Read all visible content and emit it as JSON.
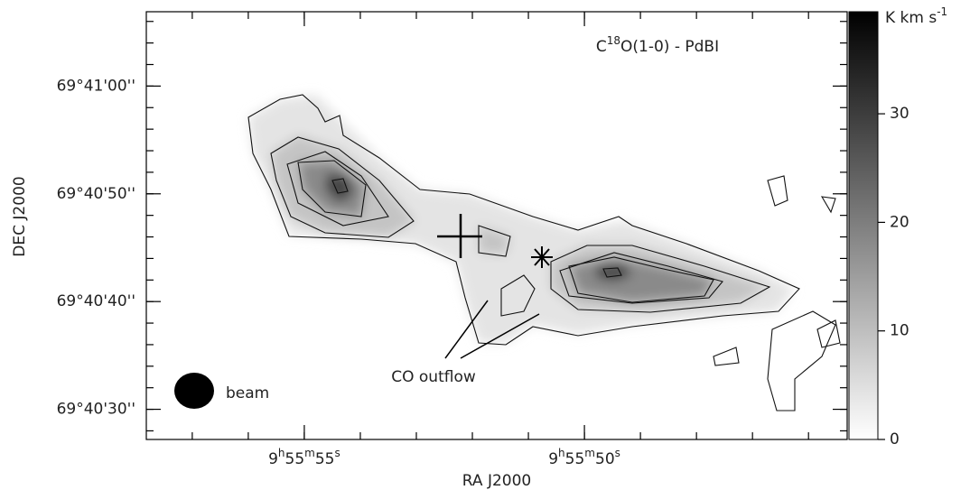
{
  "chart_data": {
    "type": "map",
    "title_parts": [
      {
        "text": "C"
      },
      {
        "text": "18",
        "sup": true
      },
      {
        "text": "O(1-0) - PdBI"
      }
    ],
    "xlabel": "RA J2000",
    "ylabel": "DEC J2000",
    "xlim": [
      57.82,
      45.31
    ],
    "xticks": [
      {
        "value": 55,
        "label_parts": [
          {
            "text": "9"
          },
          {
            "text": "h",
            "sup": true
          },
          {
            "text": "55"
          },
          {
            "text": "m",
            "sup": true
          },
          {
            "text": "55"
          },
          {
            "text": "s",
            "sup": true
          }
        ]
      },
      {
        "value": 50,
        "label_parts": [
          {
            "text": "9"
          },
          {
            "text": "h",
            "sup": true
          },
          {
            "text": "55"
          },
          {
            "text": "m",
            "sup": true
          },
          {
            "text": "50"
          },
          {
            "text": "s",
            "sup": true
          }
        ]
      }
    ],
    "ylim": [
      27.2,
      66.9
    ],
    "yticks": [
      {
        "value": 30,
        "label": "69°40'30''"
      },
      {
        "value": 40,
        "label": "69°40'40''"
      },
      {
        "value": 50,
        "label": "69°40'50''"
      },
      {
        "value": 60,
        "label": "69°41'00''"
      }
    ],
    "colorbar": {
      "label_parts": [
        {
          "text": "K km s"
        },
        {
          "text": "-1",
          "sup": true
        }
      ],
      "zlim": [
        0,
        39.4
      ],
      "ticks": [
        0,
        10,
        20,
        30
      ]
    },
    "annotations": [
      "CO outflow",
      "beam"
    ]
  }
}
